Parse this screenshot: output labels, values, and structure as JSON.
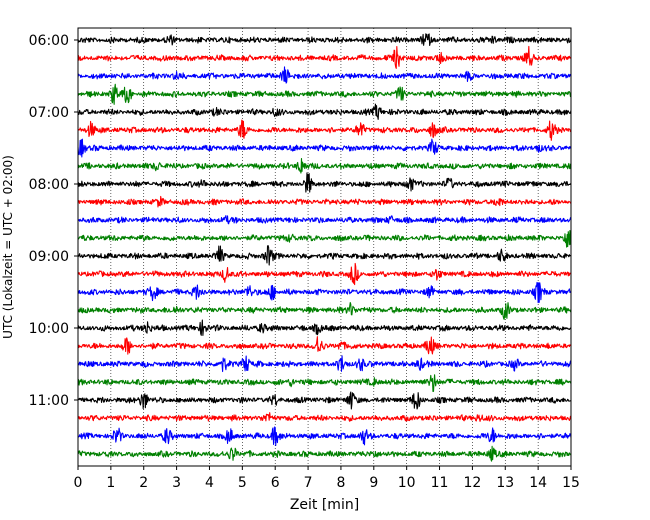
{
  "chart_data": {
    "type": "line",
    "title": "",
    "xlabel": "Zeit  [min]",
    "ylabel": "UTC (Lokalzeit = UTC + 02:00)",
    "xlim": [
      0,
      15
    ],
    "x_ticks": [
      "0",
      "1",
      "2",
      "3",
      "4",
      "5",
      "6",
      "7",
      "8",
      "9",
      "10",
      "11",
      "12",
      "13",
      "14",
      "15"
    ],
    "y_ticks": [
      "06:00",
      "07:00",
      "08:00",
      "09:00",
      "10:00",
      "11:00"
    ],
    "grid": "vertical dotted at each minute",
    "trace_interval_min": 15,
    "first_trace": "06:00",
    "trace_count": 24,
    "colors": [
      "#000000",
      "#ff0000",
      "#0000ff",
      "#008000"
    ],
    "traces": [
      {
        "start": "06:00",
        "color": "#000000",
        "events": [
          [
            10.6,
            7
          ],
          [
            2.8,
            3
          ],
          [
            12.6,
            3
          ]
        ]
      },
      {
        "start": "06:15",
        "color": "#ff0000",
        "events": [
          [
            9.7,
            10
          ],
          [
            13.7,
            10
          ],
          [
            11.0,
            4
          ]
        ]
      },
      {
        "start": "06:30",
        "color": "#0000ff",
        "events": [
          [
            6.3,
            8
          ],
          [
            3.0,
            3
          ],
          [
            11.9,
            3
          ]
        ]
      },
      {
        "start": "06:45",
        "color": "#008000",
        "events": [
          [
            1.1,
            9
          ],
          [
            1.5,
            9
          ],
          [
            9.8,
            6
          ]
        ]
      },
      {
        "start": "07:00",
        "color": "#000000",
        "events": [
          [
            9.1,
            7
          ],
          [
            4.2,
            3
          ],
          [
            6.0,
            3
          ]
        ]
      },
      {
        "start": "07:15",
        "color": "#ff0000",
        "events": [
          [
            0.4,
            7
          ],
          [
            5.0,
            9
          ],
          [
            8.6,
            6
          ],
          [
            10.8,
            7
          ],
          [
            14.4,
            9
          ]
        ]
      },
      {
        "start": "07:30",
        "color": "#0000ff",
        "events": [
          [
            0.1,
            8
          ],
          [
            10.8,
            7
          ],
          [
            14.0,
            3
          ]
        ]
      },
      {
        "start": "07:45",
        "color": "#008000",
        "events": [
          [
            6.8,
            8
          ],
          [
            2.4,
            4
          ]
        ]
      },
      {
        "start": "08:00",
        "color": "#000000",
        "events": [
          [
            7.0,
            9
          ],
          [
            10.1,
            7
          ],
          [
            11.3,
            4
          ],
          [
            3.8,
            3
          ]
        ]
      },
      {
        "start": "08:15",
        "color": "#ff0000",
        "events": [
          [
            2.5,
            3
          ],
          [
            12.8,
            3
          ]
        ]
      },
      {
        "start": "08:30",
        "color": "#0000ff",
        "events": [
          [
            9.5,
            3
          ],
          [
            4.5,
            3
          ]
        ]
      },
      {
        "start": "08:45",
        "color": "#008000",
        "events": [
          [
            14.9,
            8
          ],
          [
            6.5,
            3
          ]
        ]
      },
      {
        "start": "09:00",
        "color": "#000000",
        "events": [
          [
            4.3,
            8
          ],
          [
            5.8,
            10
          ],
          [
            12.9,
            5
          ]
        ]
      },
      {
        "start": "09:15",
        "color": "#ff0000",
        "events": [
          [
            4.5,
            7
          ],
          [
            8.4,
            9
          ],
          [
            10.9,
            4
          ]
        ]
      },
      {
        "start": "09:30",
        "color": "#0000ff",
        "events": [
          [
            2.3,
            7
          ],
          [
            3.6,
            7
          ],
          [
            5.2,
            6
          ],
          [
            5.9,
            7
          ],
          [
            14.0,
            10
          ],
          [
            10.7,
            4
          ]
        ]
      },
      {
        "start": "09:45",
        "color": "#008000",
        "events": [
          [
            8.3,
            6
          ],
          [
            13.0,
            8
          ],
          [
            3.0,
            3
          ]
        ]
      },
      {
        "start": "10:00",
        "color": "#000000",
        "events": [
          [
            2.1,
            6
          ],
          [
            3.8,
            7
          ],
          [
            7.3,
            5
          ],
          [
            5.6,
            4
          ]
        ]
      },
      {
        "start": "10:15",
        "color": "#ff0000",
        "events": [
          [
            1.5,
            7
          ],
          [
            7.3,
            9
          ],
          [
            10.7,
            10
          ],
          [
            8.0,
            4
          ]
        ]
      },
      {
        "start": "10:30",
        "color": "#0000ff",
        "events": [
          [
            4.4,
            7
          ],
          [
            5.1,
            8
          ],
          [
            8.0,
            7
          ],
          [
            8.6,
            6
          ],
          [
            10.4,
            5
          ],
          [
            13.3,
            4
          ]
        ]
      },
      {
        "start": "10:45",
        "color": "#008000",
        "events": [
          [
            10.8,
            9
          ],
          [
            6.5,
            3
          ],
          [
            9.0,
            3
          ]
        ]
      },
      {
        "start": "11:00",
        "color": "#000000",
        "events": [
          [
            2.0,
            9
          ],
          [
            8.3,
            8
          ],
          [
            10.3,
            9
          ],
          [
            6.0,
            4
          ]
        ]
      },
      {
        "start": "11:15",
        "color": "#ff0000",
        "events": [
          [
            5.8,
            4
          ],
          [
            12.2,
            3
          ]
        ]
      },
      {
        "start": "11:30",
        "color": "#0000ff",
        "events": [
          [
            1.2,
            7
          ],
          [
            2.7,
            7
          ],
          [
            4.6,
            6
          ],
          [
            6.0,
            9
          ],
          [
            8.7,
            7
          ],
          [
            12.6,
            7
          ]
        ]
      },
      {
        "start": "11:45",
        "color": "#008000",
        "events": [
          [
            4.7,
            7
          ],
          [
            12.6,
            6
          ],
          [
            9.0,
            3
          ]
        ]
      }
    ]
  }
}
